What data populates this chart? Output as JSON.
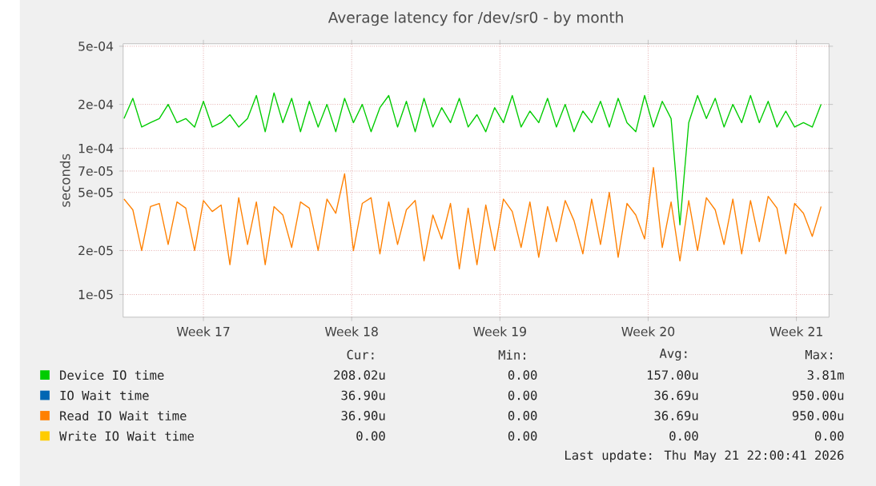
{
  "chart_data": {
    "type": "line",
    "title": "Average latency for /dev/sr0 - by month",
    "ylabel": "seconds",
    "log": "y",
    "grid": true,
    "legend": "bottom",
    "ylim": [
      7e-06,
      0.00052
    ],
    "yticks": [
      {
        "value": 1e-05,
        "label": "1e-05"
      },
      {
        "value": 2e-05,
        "label": "2e-05"
      },
      {
        "value": 5e-05,
        "label": "5e-05"
      },
      {
        "value": 7e-05,
        "label": "7e-05"
      },
      {
        "value": 0.0001,
        "label": "1e-04"
      },
      {
        "value": 0.0002,
        "label": "2e-04"
      },
      {
        "value": 0.0005,
        "label": "5e-04"
      }
    ],
    "xlim": [
      "2026-04-19T17:00",
      "2026-05-23T01:00"
    ],
    "xticks": [
      {
        "value": "2026-04-23T12:00",
        "label": "Week 17"
      },
      {
        "value": "2026-04-30T12:00",
        "label": "Week 18"
      },
      {
        "value": "2026-05-07T12:00",
        "label": "Week 19"
      },
      {
        "value": "2026-05-14T12:00",
        "label": "Week 20"
      },
      {
        "value": "2026-05-21T12:00",
        "label": "Week 21"
      }
    ],
    "x": [
      "2026-04-19T18:00",
      "2026-04-20T04:00",
      "2026-04-20T14:00",
      "2026-04-21T00:00",
      "2026-04-21T10:00",
      "2026-04-21T20:00",
      "2026-04-22T06:00",
      "2026-04-22T16:00",
      "2026-04-23T02:00",
      "2026-04-23T12:00",
      "2026-04-23T22:00",
      "2026-04-24T08:00",
      "2026-04-24T18:00",
      "2026-04-25T04:00",
      "2026-04-25T14:00",
      "2026-04-26T00:00",
      "2026-04-26T10:00",
      "2026-04-26T20:00",
      "2026-04-27T06:00",
      "2026-04-27T16:00",
      "2026-04-28T02:00",
      "2026-04-28T12:00",
      "2026-04-28T22:00",
      "2026-04-29T08:00",
      "2026-04-29T18:00",
      "2026-04-30T04:00",
      "2026-04-30T14:00",
      "2026-05-01T00:00",
      "2026-05-01T10:00",
      "2026-05-01T20:00",
      "2026-05-02T06:00",
      "2026-05-02T16:00",
      "2026-05-03T02:00",
      "2026-05-03T12:00",
      "2026-05-03T22:00",
      "2026-05-04T08:00",
      "2026-05-04T18:00",
      "2026-05-05T04:00",
      "2026-05-05T14:00",
      "2026-05-06T00:00",
      "2026-05-06T10:00",
      "2026-05-06T20:00",
      "2026-05-07T06:00",
      "2026-05-07T16:00",
      "2026-05-08T02:00",
      "2026-05-08T12:00",
      "2026-05-08T22:00",
      "2026-05-09T08:00",
      "2026-05-09T18:00",
      "2026-05-10T04:00",
      "2026-05-10T14:00",
      "2026-05-11T00:00",
      "2026-05-11T10:00",
      "2026-05-11T20:00",
      "2026-05-12T06:00",
      "2026-05-12T16:00",
      "2026-05-13T02:00",
      "2026-05-13T12:00",
      "2026-05-13T22:00",
      "2026-05-14T08:00",
      "2026-05-14T18:00",
      "2026-05-15T04:00",
      "2026-05-15T14:00",
      "2026-05-16T00:00",
      "2026-05-16T10:00",
      "2026-05-16T20:00",
      "2026-05-17T06:00",
      "2026-05-17T16:00",
      "2026-05-18T02:00",
      "2026-05-18T12:00",
      "2026-05-18T22:00",
      "2026-05-19T08:00",
      "2026-05-19T18:00",
      "2026-05-20T04:00",
      "2026-05-20T14:00",
      "2026-05-21T00:00",
      "2026-05-21T10:00",
      "2026-05-21T20:00",
      "2026-05-22T06:00",
      "2026-05-22T16:00"
    ],
    "series": [
      {
        "name": "Device IO time",
        "color": "#00cc00",
        "values": [
          0.00016,
          0.00022,
          0.00014,
          0.00015,
          0.00016,
          0.0002,
          0.00015,
          0.00016,
          0.00014,
          0.00021,
          0.00014,
          0.00015,
          0.00017,
          0.00014,
          0.00016,
          0.00023,
          0.00013,
          0.00024,
          0.00015,
          0.00022,
          0.00013,
          0.00021,
          0.00014,
          0.0002,
          0.00013,
          0.00022,
          0.00015,
          0.0002,
          0.00013,
          0.00019,
          0.00023,
          0.00014,
          0.00021,
          0.00013,
          0.00022,
          0.00014,
          0.00019,
          0.00015,
          0.00022,
          0.00014,
          0.00017,
          0.00013,
          0.00019,
          0.00015,
          0.00023,
          0.00014,
          0.00018,
          0.00015,
          0.00022,
          0.00014,
          0.0002,
          0.00013,
          0.00018,
          0.00015,
          0.00021,
          0.00014,
          0.00022,
          0.00015,
          0.00013,
          0.00023,
          0.00014,
          0.00021,
          0.00016,
          3e-05,
          0.00015,
          0.00023,
          0.00016,
          0.00022,
          0.00014,
          0.0002,
          0.00015,
          0.00023,
          0.00015,
          0.00021,
          0.00014,
          0.00018,
          0.00014,
          0.00015,
          0.00014,
          0.0002
        ]
      },
      {
        "name": "IO Wait time",
        "color": "#0066b3",
        "values": [
          null,
          null,
          null,
          null,
          null,
          null,
          null,
          null,
          null,
          null,
          null,
          null,
          null,
          null,
          null,
          null,
          null,
          null,
          null,
          null,
          null,
          null,
          null,
          null,
          null,
          null,
          null,
          null,
          null,
          null,
          null,
          null,
          null,
          null,
          null,
          null,
          null,
          null,
          null,
          null,
          null,
          null,
          null,
          null,
          null,
          null,
          null,
          null,
          null,
          null,
          null,
          null,
          null,
          null,
          null,
          null,
          null,
          null,
          null,
          null,
          null,
          null,
          null,
          null,
          null,
          null,
          null,
          null,
          null,
          null,
          null,
          null,
          null,
          null,
          null,
          null,
          null,
          null,
          null,
          null
        ]
      },
      {
        "name": "Read IO Wait time",
        "color": "#ff8000",
        "values": [
          4.5e-05,
          3.8e-05,
          2e-05,
          4e-05,
          4.2e-05,
          2.2e-05,
          4.3e-05,
          3.9e-05,
          2e-05,
          4.4e-05,
          3.7e-05,
          4.1e-05,
          1.6e-05,
          4.6e-05,
          2.2e-05,
          4.3e-05,
          1.6e-05,
          4e-05,
          3.5e-05,
          2.1e-05,
          4.3e-05,
          3.9e-05,
          2e-05,
          4.5e-05,
          3.6e-05,
          6.7e-05,
          2e-05,
          4.2e-05,
          4.6e-05,
          1.9e-05,
          4.3e-05,
          2.2e-05,
          3.8e-05,
          4.4e-05,
          1.7e-05,
          3.5e-05,
          2.4e-05,
          4.2e-05,
          1.5e-05,
          3.9e-05,
          1.6e-05,
          4.1e-05,
          2e-05,
          4.5e-05,
          3.7e-05,
          2.1e-05,
          4.3e-05,
          1.8e-05,
          4e-05,
          2.3e-05,
          4.4e-05,
          3.2e-05,
          1.9e-05,
          4.5e-05,
          2.2e-05,
          5e-05,
          1.8e-05,
          4.2e-05,
          3.5e-05,
          2.4e-05,
          7.4e-05,
          2.1e-05,
          4.3e-05,
          1.7e-05,
          4.4e-05,
          2e-05,
          4.6e-05,
          3.8e-05,
          2.2e-05,
          4.5e-05,
          1.9e-05,
          4.4e-05,
          2.3e-05,
          4.7e-05,
          3.9e-05,
          1.9e-05,
          4.2e-05,
          3.6e-05,
          2.5e-05,
          4e-05
        ]
      },
      {
        "name": "Write IO Wait time",
        "color": "#ffcc00",
        "values": [
          null,
          null,
          null,
          null,
          null,
          null,
          null,
          null,
          null,
          null,
          null,
          null,
          null,
          null,
          null,
          null,
          null,
          null,
          null,
          null,
          null,
          null,
          null,
          null,
          null,
          null,
          null,
          null,
          null,
          null,
          null,
          null,
          null,
          null,
          null,
          null,
          null,
          null,
          null,
          null,
          null,
          null,
          null,
          null,
          null,
          null,
          null,
          null,
          null,
          null,
          null,
          null,
          null,
          null,
          null,
          null,
          null,
          null,
          null,
          null,
          null,
          null,
          null,
          null,
          null,
          null,
          null,
          null,
          null,
          null,
          null,
          null,
          null,
          null,
          null,
          null,
          null,
          null,
          null,
          null
        ]
      }
    ],
    "annotations": [
      "Cur:",
      "Min:",
      "Avg:",
      "Max:",
      "208.02u",
      "0.00",
      "157.00u",
      "3.81m",
      "36.90u",
      "0.00",
      "36.69u",
      "950.00u",
      "36.90u",
      "0.00",
      "36.69u",
      "950.00u",
      "0.00",
      "0.00",
      "0.00",
      "0.00",
      "Last update: Thu May 21 22:00:41 2026"
    ]
  }
}
